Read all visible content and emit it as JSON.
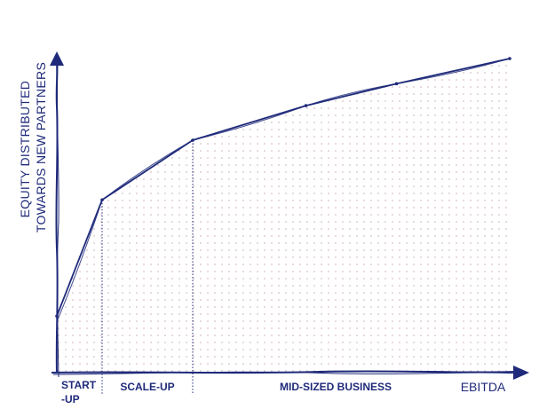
{
  "chart_data": {
    "type": "area",
    "title": "",
    "xlabel": "EBITDA",
    "ylabel_lines": [
      "EQUITY DISTRIBUTED",
      "TOWARDS NEW PARTNERS"
    ],
    "stages": [
      {
        "label_lines": [
          "START",
          "-UP"
        ]
      },
      {
        "label_lines": [
          "SCALE-UP"
        ]
      },
      {
        "label_lines": [
          "MID-SIZED BUSINESS"
        ]
      }
    ],
    "x": [
      0,
      10,
      30,
      55,
      75,
      100
    ],
    "y": [
      18,
      55,
      74,
      85,
      92,
      100
    ],
    "stage_boundaries_x": [
      10,
      30
    ],
    "xlim": [
      0,
      100
    ],
    "ylim": [
      0,
      100
    ],
    "grid": false,
    "colors": {
      "ink": "#1f2a7a",
      "dots": "#c9a7ad"
    }
  }
}
